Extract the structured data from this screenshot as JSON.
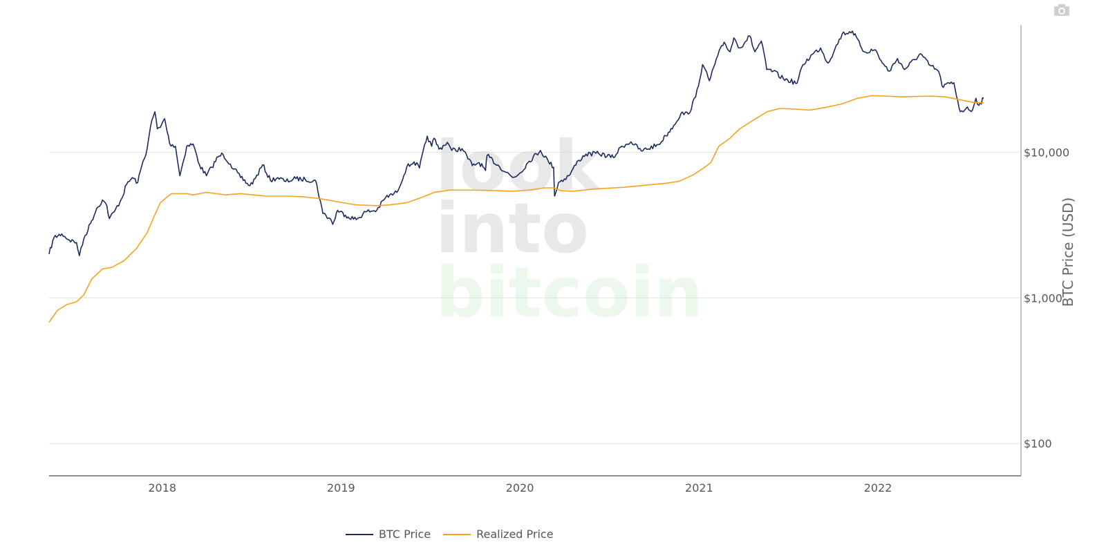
{
  "toolbar": {
    "camera_icon": "camera-icon"
  },
  "watermark": {
    "line1": "look",
    "line2": "into",
    "line3": "bitcoin"
  },
  "colors": {
    "btc": "#1a2a5e",
    "realized": "#f7a21b",
    "grid": "#e6e6e6",
    "axis": "#444444"
  },
  "chart_data": {
    "type": "line",
    "yscale": "log",
    "ylabel": "BTC Price (USD)",
    "ylim": [
      60,
      75000
    ],
    "xlim": [
      "2017-05-15",
      "2022-10-20"
    ],
    "x_ticks": [
      "2018",
      "2019",
      "2020",
      "2021",
      "2022"
    ],
    "y_ticks": [
      {
        "value": 100,
        "label": "$100"
      },
      {
        "value": 1000,
        "label": "$1,000"
      },
      {
        "value": 10000,
        "label": "$10,000"
      }
    ],
    "legend": "bottom-center",
    "series": [
      {
        "name": "BTC Price",
        "points": [
          [
            "2017-05-15",
            2000
          ],
          [
            "2017-05-25",
            2600
          ],
          [
            "2017-06-10",
            2750
          ],
          [
            "2017-06-25",
            2500
          ],
          [
            "2017-07-10",
            2400
          ],
          [
            "2017-07-16",
            1950
          ],
          [
            "2017-07-25",
            2550
          ],
          [
            "2017-08-10",
            3400
          ],
          [
            "2017-08-20",
            4100
          ],
          [
            "2017-09-01",
            4700
          ],
          [
            "2017-09-10",
            4300
          ],
          [
            "2017-09-15",
            3500
          ],
          [
            "2017-09-25",
            3900
          ],
          [
            "2017-10-10",
            4800
          ],
          [
            "2017-10-20",
            6000
          ],
          [
            "2017-11-01",
            6700
          ],
          [
            "2017-11-12",
            6200
          ],
          [
            "2017-11-20",
            8000
          ],
          [
            "2017-12-01",
            10500
          ],
          [
            "2017-12-08",
            15000
          ],
          [
            "2017-12-17",
            19000
          ],
          [
            "2017-12-22",
            14500
          ],
          [
            "2017-12-28",
            14800
          ],
          [
            "2018-01-06",
            17000
          ],
          [
            "2018-01-16",
            11500
          ],
          [
            "2018-01-28",
            11000
          ],
          [
            "2018-02-06",
            6900
          ],
          [
            "2018-02-20",
            11000
          ],
          [
            "2018-03-05",
            11400
          ],
          [
            "2018-03-18",
            8200
          ],
          [
            "2018-04-01",
            6900
          ],
          [
            "2018-04-12",
            7900
          ],
          [
            "2018-04-25",
            9300
          ],
          [
            "2018-05-05",
            9700
          ],
          [
            "2018-05-20",
            8300
          ],
          [
            "2018-06-10",
            6700
          ],
          [
            "2018-06-29",
            5900
          ],
          [
            "2018-07-10",
            6600
          ],
          [
            "2018-07-25",
            8200
          ],
          [
            "2018-08-10",
            6400
          ],
          [
            "2018-08-25",
            6700
          ],
          [
            "2018-09-10",
            6300
          ],
          [
            "2018-10-01",
            6600
          ],
          [
            "2018-10-20",
            6500
          ],
          [
            "2018-11-10",
            6400
          ],
          [
            "2018-11-20",
            4600
          ],
          [
            "2018-11-25",
            3800
          ],
          [
            "2018-12-10",
            3500
          ],
          [
            "2018-12-15",
            3200
          ],
          [
            "2018-12-25",
            4000
          ],
          [
            "2019-01-10",
            3700
          ],
          [
            "2019-02-01",
            3450
          ],
          [
            "2019-02-20",
            3900
          ],
          [
            "2019-03-15",
            4000
          ],
          [
            "2019-04-02",
            4900
          ],
          [
            "2019-04-25",
            5300
          ],
          [
            "2019-05-15",
            7900
          ],
          [
            "2019-05-30",
            8600
          ],
          [
            "2019-06-10",
            7800
          ],
          [
            "2019-06-26",
            12900
          ],
          [
            "2019-07-05",
            11000
          ],
          [
            "2019-07-10",
            12500
          ],
          [
            "2019-07-20",
            10500
          ],
          [
            "2019-08-06",
            11700
          ],
          [
            "2019-08-15",
            10300
          ],
          [
            "2019-09-05",
            10600
          ],
          [
            "2019-09-26",
            8100
          ],
          [
            "2019-10-10",
            8500
          ],
          [
            "2019-10-23",
            7500
          ],
          [
            "2019-10-26",
            9500
          ],
          [
            "2019-11-20",
            8000
          ],
          [
            "2019-12-18",
            6700
          ],
          [
            "2020-01-01",
            7200
          ],
          [
            "2020-01-20",
            8700
          ],
          [
            "2020-02-12",
            10300
          ],
          [
            "2020-02-28",
            8700
          ],
          [
            "2020-03-10",
            7900
          ],
          [
            "2020-03-12",
            5000
          ],
          [
            "2020-03-20",
            6200
          ],
          [
            "2020-04-10",
            6900
          ],
          [
            "2020-04-30",
            8800
          ],
          [
            "2020-05-15",
            9700
          ],
          [
            "2020-06-10",
            9800
          ],
          [
            "2020-07-10",
            9200
          ],
          [
            "2020-07-27",
            11000
          ],
          [
            "2020-08-15",
            11800
          ],
          [
            "2020-09-05",
            10200
          ],
          [
            "2020-10-10",
            11300
          ],
          [
            "2020-10-25",
            13000
          ],
          [
            "2020-11-10",
            15300
          ],
          [
            "2020-11-25",
            18500
          ],
          [
            "2020-12-10",
            18300
          ],
          [
            "2020-12-25",
            24000
          ],
          [
            "2021-01-08",
            40000
          ],
          [
            "2021-01-22",
            31000
          ],
          [
            "2021-02-08",
            46000
          ],
          [
            "2021-02-21",
            57000
          ],
          [
            "2021-03-05",
            49000
          ],
          [
            "2021-03-13",
            61000
          ],
          [
            "2021-03-25",
            52000
          ],
          [
            "2021-04-14",
            63000
          ],
          [
            "2021-04-25",
            49000
          ],
          [
            "2021-05-08",
            58000
          ],
          [
            "2021-05-19",
            37000
          ],
          [
            "2021-06-01",
            36000
          ],
          [
            "2021-06-22",
            32000
          ],
          [
            "2021-07-20",
            29800
          ],
          [
            "2021-08-01",
            40000
          ],
          [
            "2021-08-20",
            47000
          ],
          [
            "2021-09-06",
            52000
          ],
          [
            "2021-09-21",
            41000
          ],
          [
            "2021-10-05",
            51000
          ],
          [
            "2021-10-20",
            65000
          ],
          [
            "2021-11-10",
            68000
          ],
          [
            "2021-11-26",
            54000
          ],
          [
            "2021-12-04",
            49000
          ],
          [
            "2021-12-27",
            50500
          ],
          [
            "2022-01-10",
            41000
          ],
          [
            "2022-01-24",
            36000
          ],
          [
            "2022-02-10",
            44000
          ],
          [
            "2022-02-24",
            37000
          ],
          [
            "2022-03-29",
            47500
          ],
          [
            "2022-04-15",
            40000
          ],
          [
            "2022-05-05",
            36000
          ],
          [
            "2022-05-12",
            28500
          ],
          [
            "2022-06-05",
            30000
          ],
          [
            "2022-06-13",
            22500
          ],
          [
            "2022-06-18",
            19000
          ],
          [
            "2022-06-30",
            20000
          ],
          [
            "2022-07-13",
            19500
          ],
          [
            "2022-07-20",
            23500
          ],
          [
            "2022-07-26",
            21000
          ],
          [
            "2022-08-05",
            23500
          ]
        ]
      },
      {
        "name": "Realized Price",
        "points": [
          [
            "2017-05-15",
            680
          ],
          [
            "2017-06-01",
            820
          ],
          [
            "2017-06-20",
            900
          ],
          [
            "2017-07-10",
            940
          ],
          [
            "2017-07-25",
            1050
          ],
          [
            "2017-08-10",
            1350
          ],
          [
            "2017-09-01",
            1580
          ],
          [
            "2017-09-20",
            1620
          ],
          [
            "2017-10-15",
            1800
          ],
          [
            "2017-11-10",
            2200
          ],
          [
            "2017-12-01",
            2800
          ],
          [
            "2017-12-15",
            3600
          ],
          [
            "2017-12-28",
            4500
          ],
          [
            "2018-01-10",
            4900
          ],
          [
            "2018-01-20",
            5200
          ],
          [
            "2018-02-20",
            5200
          ],
          [
            "2018-03-05",
            5100
          ],
          [
            "2018-04-01",
            5300
          ],
          [
            "2018-05-10",
            5100
          ],
          [
            "2018-06-10",
            5200
          ],
          [
            "2018-08-01",
            5000
          ],
          [
            "2018-09-15",
            5000
          ],
          [
            "2018-10-15",
            4950
          ],
          [
            "2018-11-20",
            4800
          ],
          [
            "2018-12-20",
            4600
          ],
          [
            "2019-02-01",
            4350
          ],
          [
            "2019-03-15",
            4300
          ],
          [
            "2019-04-10",
            4350
          ],
          [
            "2019-05-15",
            4500
          ],
          [
            "2019-06-15",
            4900
          ],
          [
            "2019-07-10",
            5300
          ],
          [
            "2019-08-10",
            5500
          ],
          [
            "2019-10-01",
            5500
          ],
          [
            "2019-11-15",
            5450
          ],
          [
            "2019-12-15",
            5400
          ],
          [
            "2020-01-20",
            5500
          ],
          [
            "2020-02-20",
            5700
          ],
          [
            "2020-03-10",
            5700
          ],
          [
            "2020-03-25",
            5450
          ],
          [
            "2020-04-20",
            5400
          ],
          [
            "2020-06-01",
            5600
          ],
          [
            "2020-08-01",
            5750
          ],
          [
            "2020-09-15",
            5950
          ],
          [
            "2020-10-20",
            6100
          ],
          [
            "2020-11-20",
            6300
          ],
          [
            "2020-12-20",
            7000
          ],
          [
            "2021-01-10",
            7800
          ],
          [
            "2021-01-25",
            8500
          ],
          [
            "2021-02-10",
            11000
          ],
          [
            "2021-03-05",
            12500
          ],
          [
            "2021-03-25",
            14500
          ],
          [
            "2021-04-20",
            16500
          ],
          [
            "2021-05-20",
            19000
          ],
          [
            "2021-06-15",
            20000
          ],
          [
            "2021-07-15",
            19800
          ],
          [
            "2021-08-15",
            19500
          ],
          [
            "2021-09-15",
            20300
          ],
          [
            "2021-10-20",
            21500
          ],
          [
            "2021-11-20",
            23500
          ],
          [
            "2021-12-20",
            24500
          ],
          [
            "2022-01-20",
            24300
          ],
          [
            "2022-02-20",
            24000
          ],
          [
            "2022-03-20",
            24200
          ],
          [
            "2022-04-20",
            24300
          ],
          [
            "2022-05-20",
            24000
          ],
          [
            "2022-06-15",
            23000
          ],
          [
            "2022-07-15",
            22000
          ],
          [
            "2022-08-05",
            21800
          ]
        ]
      }
    ]
  },
  "legend": {
    "btc_label": "BTC Price",
    "realized_label": "Realized Price"
  }
}
